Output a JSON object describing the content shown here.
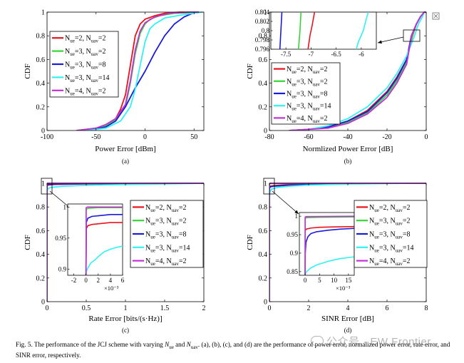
{
  "colors": {
    "red": "#e8131b",
    "green": "#33d633",
    "blue": "#1a1adb",
    "cyan": "#2ff2f2",
    "magenta": "#c530d6"
  },
  "legend_entries": [
    {
      "color": "red",
      "ue": "2",
      "uav": "2"
    },
    {
      "color": "green",
      "ue": "3",
      "uav": "2"
    },
    {
      "color": "blue",
      "ue": "3",
      "uav": "8"
    },
    {
      "color": "cyan",
      "ue": "3",
      "uav": "14"
    },
    {
      "color": "magenta",
      "ue": "4",
      "uav": "2"
    }
  ],
  "chart_data": [
    {
      "id": "a",
      "type": "line",
      "panel_label": "(a)",
      "xlabel": "Power Error [dBm]",
      "ylabel": "CDF",
      "xlim": [
        -100,
        60
      ],
      "ylim": [
        0,
        1
      ],
      "xticks": [
        -100,
        -50,
        0,
        50
      ],
      "yticks": [
        0,
        0.2,
        0.4,
        0.6,
        0.8,
        1
      ],
      "grid": false,
      "legend_position": "middle-left",
      "series": [
        {
          "color": "red",
          "x": [
            -70,
            -50,
            -40,
            -30,
            -25,
            -20,
            -15,
            -10,
            -5,
            0,
            10,
            20,
            35,
            55
          ],
          "y": [
            0,
            0.02,
            0.05,
            0.1,
            0.18,
            0.3,
            0.55,
            0.8,
            0.9,
            0.94,
            0.97,
            0.99,
            1,
            1
          ]
        },
        {
          "color": "green",
          "x": [
            -70,
            -50,
            -40,
            -30,
            -20,
            -15,
            -10,
            -5,
            0,
            5,
            15,
            30,
            55
          ],
          "y": [
            0,
            0.02,
            0.04,
            0.09,
            0.2,
            0.4,
            0.65,
            0.82,
            0.9,
            0.94,
            0.97,
            0.99,
            1
          ]
        },
        {
          "color": "blue",
          "x": [
            -60,
            -40,
            -30,
            -20,
            -10,
            0,
            10,
            20,
            30,
            40,
            50,
            55
          ],
          "y": [
            0,
            0.03,
            0.08,
            0.2,
            0.36,
            0.5,
            0.66,
            0.8,
            0.9,
            0.96,
            0.995,
            1
          ]
        },
        {
          "color": "cyan",
          "x": [
            -60,
            -40,
            -25,
            -15,
            -10,
            -5,
            0,
            5,
            10,
            20,
            40,
            58
          ],
          "y": [
            0,
            0.02,
            0.08,
            0.2,
            0.35,
            0.55,
            0.75,
            0.86,
            0.9,
            0.95,
            0.98,
            1
          ]
        },
        {
          "color": "magenta",
          "x": [
            -70,
            -50,
            -40,
            -30,
            -20,
            -15,
            -10,
            -5,
            0,
            10,
            25,
            45,
            55
          ],
          "y": [
            0,
            0.02,
            0.05,
            0.1,
            0.22,
            0.42,
            0.68,
            0.84,
            0.91,
            0.96,
            0.99,
            1,
            1
          ]
        }
      ]
    },
    {
      "id": "b",
      "type": "line",
      "panel_label": "(b)",
      "xlabel": "Normlized Power Error [dB]",
      "ylabel": "CDF",
      "xlim": [
        -80,
        0
      ],
      "ylim": [
        0,
        1
      ],
      "xticks": [
        -80,
        -60,
        -40,
        -20,
        0
      ],
      "yticks": [
        0,
        0.2,
        0.4,
        0.6,
        0.8,
        1
      ],
      "grid": false,
      "legend_position": "middle-left",
      "series": [
        {
          "color": "red",
          "x": [
            -70,
            -60,
            -50,
            -40,
            -30,
            -20,
            -15,
            -10,
            -7,
            -5,
            -3,
            -1,
            0
          ],
          "y": [
            0,
            0.01,
            0.03,
            0.08,
            0.17,
            0.33,
            0.45,
            0.6,
            0.8,
            0.9,
            0.96,
            1,
            1
          ]
        },
        {
          "color": "green",
          "x": [
            -70,
            -60,
            -50,
            -40,
            -30,
            -20,
            -15,
            -10,
            -7.2,
            -5,
            -3,
            -1,
            0
          ],
          "y": [
            0,
            0.01,
            0.03,
            0.07,
            0.15,
            0.3,
            0.42,
            0.58,
            0.8,
            0.9,
            0.96,
            1,
            1
          ]
        },
        {
          "color": "blue",
          "x": [
            -70,
            -60,
            -50,
            -40,
            -30,
            -20,
            -15,
            -10,
            -7.6,
            -5,
            -3,
            -1,
            0
          ],
          "y": [
            0,
            0.01,
            0.03,
            0.08,
            0.16,
            0.32,
            0.44,
            0.6,
            0.8,
            0.9,
            0.96,
            1,
            1
          ]
        },
        {
          "color": "cyan",
          "x": [
            -70,
            -60,
            -50,
            -40,
            -30,
            -20,
            -15,
            -10,
            -6,
            -4,
            -2,
            -1,
            0
          ],
          "y": [
            0,
            0.01,
            0.04,
            0.1,
            0.2,
            0.36,
            0.48,
            0.63,
            0.8,
            0.9,
            0.96,
            1,
            1
          ]
        },
        {
          "color": "magenta",
          "x": [
            -70,
            -60,
            -50,
            -40,
            -30,
            -20,
            -15,
            -10,
            -7.5,
            -5,
            -3,
            -1,
            0
          ],
          "y": [
            0,
            0.01,
            0.02,
            0.06,
            0.14,
            0.28,
            0.4,
            0.56,
            0.8,
            0.9,
            0.96,
            1,
            1
          ]
        }
      ],
      "inset": {
        "xlim": [
          -7.8,
          -5.7
        ],
        "ylim": [
          0.796,
          0.804
        ],
        "xticks": [
          -7.5,
          -7,
          -6.5,
          -6
        ],
        "yticks": [
          0.796,
          0.798,
          0.8,
          0.802,
          0.804
        ],
        "lines": [
          {
            "color": "blue",
            "x": [
              -7.62,
              -7.6,
              -7.58
            ],
            "y": [
              0.796,
              0.8,
              0.804
            ]
          },
          {
            "color": "green",
            "x": [
              -7.25,
              -7.22,
              -7.2
            ],
            "y": [
              0.796,
              0.8,
              0.804
            ]
          },
          {
            "color": "red",
            "x": [
              -7.06,
              -7.02,
              -6.98,
              -6.93
            ],
            "y": [
              0.796,
              0.799,
              0.801,
              0.804
            ]
          },
          {
            "color": "cyan",
            "x": [
              -6.1,
              -6.06,
              -6.0,
              -5.96,
              -5.9,
              -5.86
            ],
            "y": [
              0.796,
              0.7975,
              0.799,
              0.8,
              0.8025,
              0.804
            ]
          }
        ]
      }
    },
    {
      "id": "c",
      "type": "line",
      "panel_label": "(c)",
      "xlabel": "Rate Error [bits/(s·Hz)]",
      "ylabel": "CDF",
      "xlim": [
        0,
        2
      ],
      "ylim": [
        0,
        1
      ],
      "xticks": [
        0,
        0.5,
        1,
        1.5,
        2
      ],
      "xtick_labels": [
        "0",
        "0.5",
        "1",
        "1.5",
        "2"
      ],
      "yticks": [
        0,
        0.2,
        0.4,
        0.6,
        0.8,
        1
      ],
      "grid": false,
      "legend_position": "middle-right",
      "series": [
        {
          "color": "red",
          "x": [
            0,
            0.0002,
            0.001,
            0.01,
            0.1,
            0.5,
            2
          ],
          "y": [
            0,
            0.97,
            0.975,
            0.985,
            0.99,
            0.995,
            1
          ]
        },
        {
          "color": "green",
          "x": [
            0,
            0.0001,
            0.001,
            0.01,
            2
          ],
          "y": [
            0,
            0.997,
            0.998,
            0.999,
            1
          ]
        },
        {
          "color": "blue",
          "x": [
            0,
            0.0002,
            0.001,
            0.01,
            0.1,
            0.5,
            2
          ],
          "y": [
            0,
            0.98,
            0.985,
            0.99,
            0.993,
            0.997,
            1
          ]
        },
        {
          "color": "cyan",
          "x": [
            0,
            0.0005,
            0.002,
            0.01,
            0.05,
            0.2,
            0.6,
            2
          ],
          "y": [
            0,
            0.9,
            0.93,
            0.955,
            0.965,
            0.975,
            0.985,
            1
          ]
        },
        {
          "color": "magenta",
          "x": [
            0,
            0.0001,
            0.001,
            2
          ],
          "y": [
            0,
            0.999,
            1,
            1
          ]
        }
      ],
      "inset": {
        "xlim": [
          -0.003,
          0.006
        ],
        "ylim": [
          0.89,
          1.005
        ],
        "xticks": [
          -0.002,
          0,
          0.002,
          0.004,
          0.006
        ],
        "xtick_labels": [
          "-2",
          "0",
          "2",
          "4",
          "6"
        ],
        "yticks": [
          0.9,
          0.95,
          1
        ],
        "exponent_label": "×10⁻³",
        "lines": [
          {
            "color": "cyan",
            "x": [
              0,
              5e-05,
              0.0002,
              0.0008,
              0.0015,
              0.002,
              0.003,
              0.004,
              0.005,
              0.006
            ],
            "y": [
              0.89,
              0.895,
              0.9,
              0.91,
              0.915,
              0.92,
              0.928,
              0.932,
              0.935,
              0.937
            ]
          },
          {
            "color": "red",
            "x": [
              0,
              5e-05,
              0.0003,
              0.001,
              0.002,
              0.003,
              0.004,
              0.005,
              0.006
            ],
            "y": [
              0.89,
              0.965,
              0.97,
              0.972,
              0.973,
              0.974,
              0.975,
              0.975,
              0.975
            ]
          },
          {
            "color": "blue",
            "x": [
              0,
              5e-05,
              0.0003,
              0.001,
              0.002,
              0.003,
              0.004,
              0.005,
              0.006
            ],
            "y": [
              0.89,
              0.975,
              0.982,
              0.985,
              0.986,
              0.987,
              0.988,
              0.988,
              0.988
            ]
          },
          {
            "color": "green",
            "x": [
              0,
              3e-05,
              0.0003,
              0.002,
              0.006
            ],
            "y": [
              0.89,
              0.996,
              0.998,
              0.999,
              0.999
            ]
          },
          {
            "color": "magenta",
            "x": [
              0,
              2e-05,
              0.0002,
              0.002,
              0.006
            ],
            "y": [
              0.89,
              0.999,
              1,
              1,
              1
            ]
          }
        ]
      }
    },
    {
      "id": "d",
      "type": "line",
      "panel_label": "(d)",
      "xlabel": "SINR Error [dB]",
      "ylabel": "CDF",
      "xlim": [
        0,
        8
      ],
      "ylim": [
        0,
        1
      ],
      "xticks": [
        0,
        2,
        4,
        6,
        8
      ],
      "yticks": [
        0,
        0.2,
        0.4,
        0.6,
        0.8,
        1
      ],
      "grid": false,
      "legend_position": "middle-right",
      "series": [
        {
          "color": "red",
          "x": [
            0,
            0.001,
            0.01,
            0.05,
            0.2,
            0.6,
            1,
            2,
            4.2
          ],
          "y": [
            0,
            0.96,
            0.97,
            0.975,
            0.98,
            0.985,
            0.99,
            0.995,
            1
          ]
        },
        {
          "color": "green",
          "x": [
            0,
            0.001,
            0.01,
            0.1,
            1,
            8
          ],
          "y": [
            0,
            0.995,
            0.997,
            0.998,
            0.999,
            1
          ]
        },
        {
          "color": "blue",
          "x": [
            0,
            0.002,
            0.01,
            0.05,
            0.2,
            0.6,
            1.5,
            3,
            4.3
          ],
          "y": [
            0,
            0.95,
            0.96,
            0.97,
            0.975,
            0.98,
            0.987,
            0.994,
            1
          ]
        },
        {
          "color": "cyan",
          "x": [
            0,
            0.004,
            0.02,
            0.1,
            0.4,
            1,
            2,
            4,
            6,
            7
          ],
          "y": [
            0,
            0.88,
            0.92,
            0.95,
            0.965,
            0.975,
            0.985,
            0.993,
            0.998,
            1
          ]
        },
        {
          "color": "magenta",
          "x": [
            0,
            0.0005,
            0.005,
            8
          ],
          "y": [
            0,
            0.998,
            1,
            1
          ]
        }
      ],
      "inset": {
        "xlim": [
          -0.002,
          0.017
        ],
        "ylim": [
          0.84,
          1.01
        ],
        "xticks": [
          0,
          0.005,
          0.01,
          0.015
        ],
        "xtick_labels": [
          "0",
          "5",
          "10",
          "15"
        ],
        "yticks": [
          0.85,
          0.9,
          0.95,
          1
        ],
        "exponent_label": "×10⁻³",
        "lines": [
          {
            "color": "cyan",
            "x": [
              0,
              0.0001,
              0.0005,
              0.002,
              0.004,
              0.008,
              0.012,
              0.017
            ],
            "y": [
              0.84,
              0.845,
              0.85,
              0.86,
              0.868,
              0.878,
              0.885,
              0.89
            ]
          },
          {
            "color": "blue",
            "x": [
              0,
              5e-05,
              0.0003,
              0.001,
              0.002,
              0.004,
              0.008,
              0.012,
              0.017
            ],
            "y": [
              0.84,
              0.9,
              0.93,
              0.945,
              0.953,
              0.958,
              0.962,
              0.965,
              0.967
            ]
          },
          {
            "color": "red",
            "x": [
              0,
              3e-05,
              0.0003,
              0.002,
              0.005,
              0.01,
              0.017
            ],
            "y": [
              0.84,
              0.96,
              0.965,
              0.968,
              0.97,
              0.971,
              0.972
            ]
          },
          {
            "color": "green",
            "x": [
              0,
              2e-05,
              0.0005,
              0.005,
              0.017
            ],
            "y": [
              0.84,
              0.994,
              0.996,
              0.997,
              0.998
            ]
          },
          {
            "color": "magenta",
            "x": [
              0,
              1e-05,
              0.0005,
              0.017
            ],
            "y": [
              0.84,
              0.998,
              0.999,
              1
            ]
          }
        ]
      }
    }
  ],
  "caption": {
    "lead": "Fig. 5.  The performance of the JCJ scheme with varying ",
    "mid1": " and ",
    "tail": ". (a), (b), (c), and (d) are the performance of power error, normalized power error, rate error, and SINR error, respectively."
  },
  "watermark": "公众号 · EW Frontier"
}
